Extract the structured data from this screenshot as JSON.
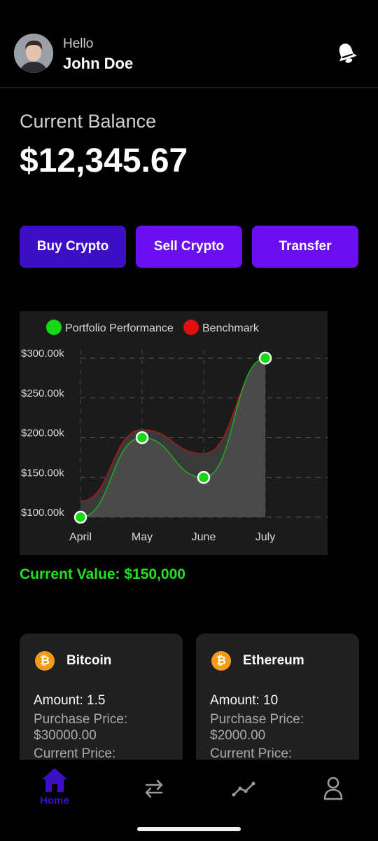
{
  "header": {
    "greeting": "Hello",
    "user_name": "John Doe",
    "avatar_icon": "user-avatar",
    "notification_icon": "bell-icon"
  },
  "balance": {
    "label": "Current Balance",
    "value": "$12,345.67"
  },
  "actions": {
    "buy_label": "Buy Crypto",
    "sell_label": "Sell Crypto",
    "transfer_label": "Transfer"
  },
  "chart_data": {
    "type": "area",
    "categories": [
      "April",
      "May",
      "June",
      "July"
    ],
    "series": [
      {
        "name": "Portfolio Performance",
        "color": "#16d916",
        "values": [
          100000,
          200000,
          150000,
          300000
        ]
      },
      {
        "name": "Benchmark",
        "color": "#e01010",
        "values": [
          120000,
          210000,
          180000,
          290000
        ]
      }
    ],
    "yticks": [
      "$100.00k",
      "$150.00k",
      "$200.00k",
      "$250.00k",
      "$300.00k"
    ],
    "ylim": [
      100000,
      300000
    ],
    "grid": true,
    "legend": "top"
  },
  "current_value": "Current Value: $150,000",
  "assets": [
    {
      "name": "Bitcoin",
      "icon": "bitcoin-icon",
      "symbol": "₿",
      "amount": "Amount: 1.5",
      "purchase_label": "Purchase Price:",
      "purchase_value": "$30000.00",
      "current_label": "Current Price:"
    },
    {
      "name": "Ethereum",
      "icon": "bitcoin-icon",
      "symbol": "₿",
      "amount": "Amount: 10",
      "purchase_label": "Purchase Price:",
      "purchase_value": "$2000.00",
      "current_label": "Current Price:"
    }
  ],
  "nav": {
    "home_label": "Home",
    "active_color": "#3d0fc4",
    "icons": [
      "home-icon",
      "transfer-arrows-icon",
      "markets-chart-icon",
      "profile-icon"
    ]
  }
}
